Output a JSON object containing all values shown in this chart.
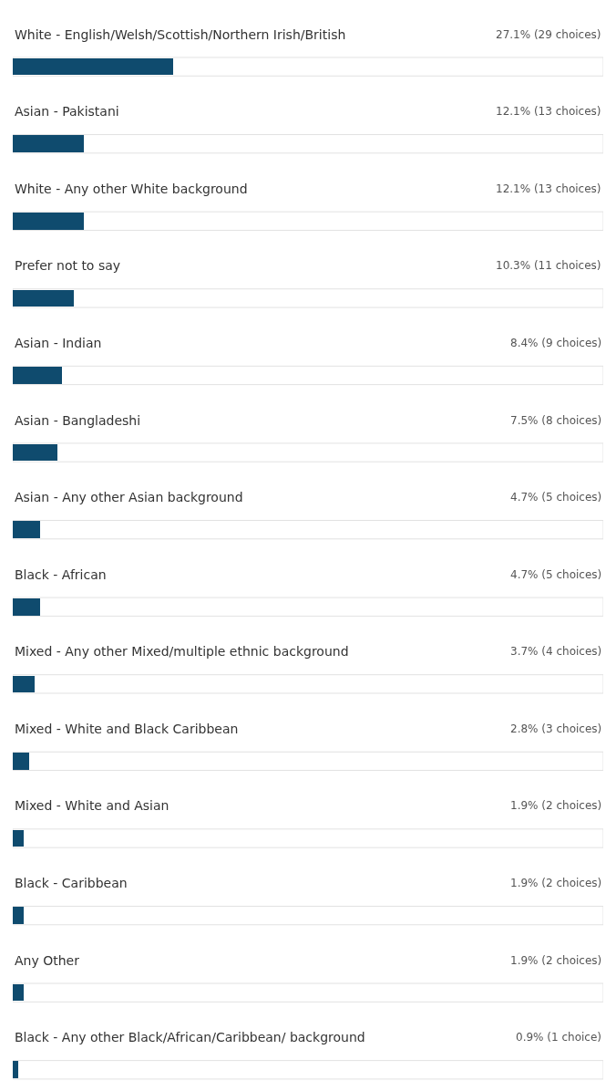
{
  "chart_data": {
    "type": "bar",
    "orientation": "horizontal",
    "categories": [
      "White - English/Welsh/Scottish/Northern Irish/British",
      "Asian - Pakistani",
      "White - Any other White background",
      "Prefer not to say",
      "Asian - Indian",
      "Asian - Bangladeshi",
      "Asian - Any other Asian background",
      "Black - African",
      "Mixed - Any other Mixed/multiple ethnic background",
      "Mixed - White and Black Caribbean",
      "Mixed - White and Asian",
      "Black - Caribbean",
      "Any Other",
      "Black - Any other Black/African/Caribbean/ background"
    ],
    "values": [
      27.1,
      12.1,
      12.1,
      10.3,
      8.4,
      7.5,
      4.7,
      4.7,
      3.7,
      2.8,
      1.9,
      1.9,
      1.9,
      0.9
    ],
    "value_labels": [
      "27.1% (29 choices)",
      "12.1% (13 choices)",
      "12.1% (13 choices)",
      "10.3% (11 choices)",
      "8.4% (9 choices)",
      "7.5% (8 choices)",
      "4.7% (5 choices)",
      "4.7% (5 choices)",
      "3.7% (4 choices)",
      "2.8% (3 choices)",
      "1.9% (2 choices)",
      "1.9% (2 choices)",
      "1.9% (2 choices)",
      "0.9% (1 choice)"
    ],
    "color": "#0f4b6e",
    "xlim": [
      0,
      100
    ],
    "tick_labels": false,
    "grid": false,
    "legend": false
  }
}
